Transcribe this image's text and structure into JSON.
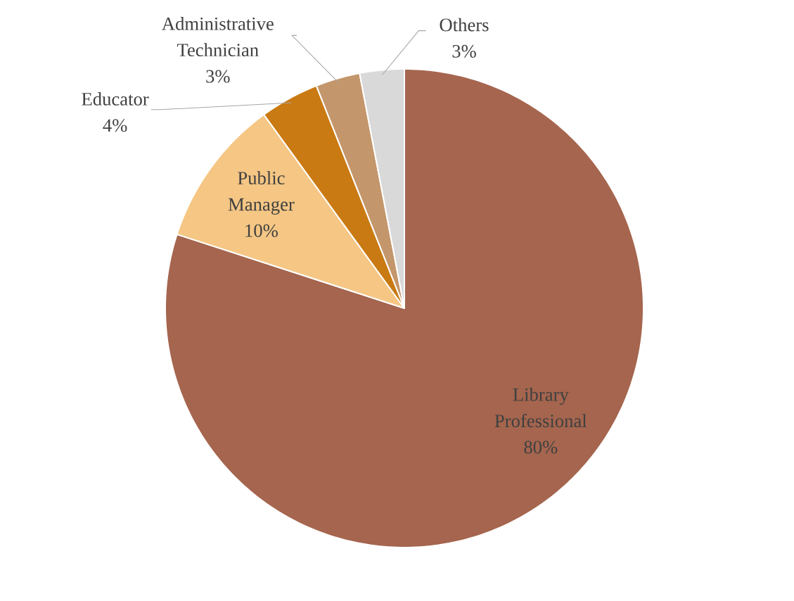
{
  "chart_data": {
    "type": "pie",
    "categories": [
      "Library Professional",
      "Public Manager",
      "Educator",
      "Administrative Technician",
      "Others"
    ],
    "values": [
      80,
      10,
      4,
      3,
      3
    ],
    "value_labels": [
      "80%",
      "10%",
      "4%",
      "3%",
      "3%"
    ],
    "colors": [
      "#a5654e",
      "#f5c684",
      "#c97a12",
      "#c4966b",
      "#d9d9d9"
    ]
  }
}
